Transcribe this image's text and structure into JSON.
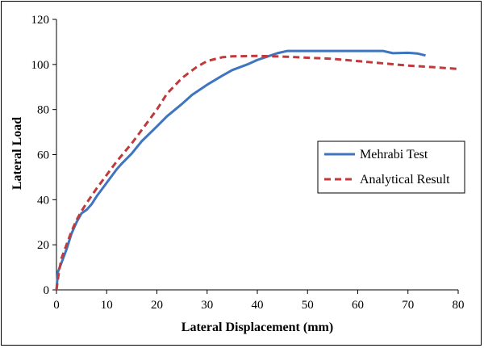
{
  "chart_data": {
    "type": "line",
    "title": "",
    "xlabel": "Lateral Displacement (mm)",
    "ylabel": "Lateral Load",
    "xlim": [
      0,
      80
    ],
    "ylim": [
      0,
      120
    ],
    "xticks": [
      0,
      10,
      20,
      30,
      40,
      50,
      60,
      70,
      80
    ],
    "yticks": [
      0,
      20,
      40,
      60,
      80,
      100,
      120
    ],
    "grid": false,
    "legend_position": "right",
    "series": [
      {
        "name": "Mehrabi Test",
        "color": "#3f74bf",
        "style": "solid",
        "points": [
          [
            0,
            0
          ],
          [
            0.3,
            8
          ],
          [
            1,
            12
          ],
          [
            2,
            18
          ],
          [
            3,
            25
          ],
          [
            4,
            30
          ],
          [
            5,
            34
          ],
          [
            6,
            35.5
          ],
          [
            7,
            38
          ],
          [
            8,
            41.5
          ],
          [
            10,
            47.5
          ],
          [
            12,
            53.5
          ],
          [
            13,
            56
          ],
          [
            15,
            60.5
          ],
          [
            17,
            66
          ],
          [
            20,
            72.5
          ],
          [
            22,
            77
          ],
          [
            25,
            82.5
          ],
          [
            27,
            86.5
          ],
          [
            30,
            91
          ],
          [
            33,
            95
          ],
          [
            35,
            97.5
          ],
          [
            38,
            100
          ],
          [
            40,
            102
          ],
          [
            42,
            103.5
          ],
          [
            44,
            105
          ],
          [
            46,
            106
          ],
          [
            50,
            106
          ],
          [
            55,
            106
          ],
          [
            60,
            106
          ],
          [
            65,
            106
          ],
          [
            66,
            105.5
          ],
          [
            67,
            105
          ],
          [
            70,
            105.2
          ],
          [
            72,
            104.8
          ],
          [
            73.5,
            104
          ]
        ]
      },
      {
        "name": "Analytical Result",
        "color": "#c0393b",
        "style": "dashed",
        "points": [
          [
            0,
            0
          ],
          [
            0.5,
            8
          ],
          [
            1,
            14
          ],
          [
            2,
            20
          ],
          [
            3,
            26
          ],
          [
            4,
            31
          ],
          [
            5,
            35
          ],
          [
            6,
            38.5
          ],
          [
            8,
            45
          ],
          [
            10,
            51
          ],
          [
            12,
            57
          ],
          [
            15,
            65
          ],
          [
            18,
            74
          ],
          [
            20,
            80
          ],
          [
            22,
            87
          ],
          [
            25,
            94
          ],
          [
            28,
            99
          ],
          [
            30,
            101.5
          ],
          [
            33,
            103.2
          ],
          [
            35,
            103.6
          ],
          [
            40,
            103.8
          ],
          [
            45,
            103.5
          ],
          [
            50,
            103
          ],
          [
            55,
            102.5
          ],
          [
            60,
            101.5
          ],
          [
            65,
            100.5
          ],
          [
            70,
            99.5
          ],
          [
            75,
            98.8
          ],
          [
            80,
            98
          ]
        ]
      }
    ]
  }
}
